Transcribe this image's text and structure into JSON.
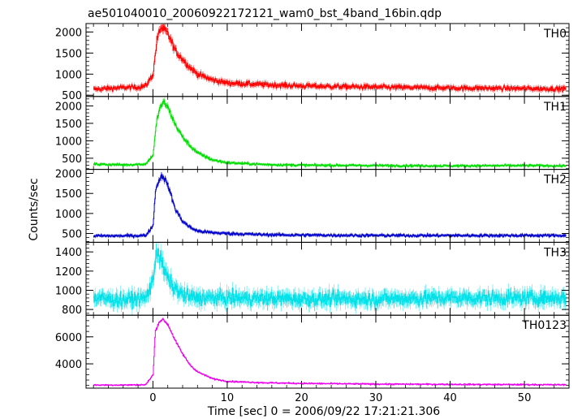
{
  "title": "ae501040010_20060922172121_wam0_bst_4band_16bin.qdp",
  "ylabel": "Counts/sec",
  "xlabel": "Time [sec] 0 = 2006/09/22 17:21:21.306",
  "chart_data": {
    "type": "line",
    "title": "ae501040010_20060922172121_wam0_bst_4band_16bin.qdp",
    "xlabel": "Time [sec] 0 = 2006/09/22 17:21:21.306",
    "ylabel": "Counts/sec",
    "xlim": [
      -9,
      56
    ],
    "x_ticks": [
      0,
      10,
      20,
      30,
      40,
      50
    ],
    "grid": false,
    "panels": [
      {
        "name": "TH0",
        "color": "#ff0000",
        "ylim": [
          470,
          2200
        ],
        "y_ticks": [
          500,
          1000,
          1500,
          2000
        ],
        "series_x": [
          -8,
          -6,
          -4,
          -2,
          -1,
          0,
          0.5,
          1,
          1.5,
          2,
          3,
          4,
          5,
          6,
          8,
          10,
          15,
          20,
          30,
          40,
          50,
          55.5
        ],
        "series_y": [
          640,
          660,
          680,
          690,
          720,
          1000,
          1800,
          2100,
          2050,
          1950,
          1550,
          1350,
          1150,
          1000,
          860,
          790,
          750,
          720,
          690,
          670,
          660,
          650
        ],
        "noise": 55
      },
      {
        "name": "TH1",
        "color": "#00dd00",
        "ylim": [
          180,
          2270
        ],
        "y_ticks": [
          500,
          1000,
          1500,
          2000
        ],
        "series_x": [
          -8,
          -4,
          -1,
          0,
          0.5,
          1,
          1.5,
          2,
          3,
          4,
          5,
          6,
          8,
          10,
          15,
          20,
          30,
          40,
          50,
          55.5
        ],
        "series_y": [
          330,
          310,
          330,
          600,
          1600,
          2000,
          2100,
          1950,
          1450,
          1100,
          850,
          650,
          450,
          370,
          320,
          300,
          290,
          280,
          290,
          280
        ],
        "noise": 35
      },
      {
        "name": "TH2",
        "color": "#0000cc",
        "ylim": [
          280,
          2100
        ],
        "y_ticks": [
          500,
          1000,
          1500,
          2000
        ],
        "series_x": [
          -8,
          -4,
          -1,
          0,
          0.3,
          0.8,
          1.3,
          2,
          3,
          4,
          5,
          6,
          8,
          10,
          15,
          20,
          30,
          40,
          50,
          55.5
        ],
        "series_y": [
          440,
          440,
          450,
          700,
          1550,
          1850,
          1950,
          1700,
          1100,
          800,
          650,
          560,
          520,
          500,
          470,
          460,
          450,
          450,
          450,
          450
        ],
        "noise": 35
      },
      {
        "name": "TH3",
        "color": "#00e0e8",
        "ylim": [
          740,
          1500
        ],
        "y_ticks": [
          800,
          1000,
          1200,
          1400
        ],
        "series_x": [
          -8,
          -4,
          -1,
          0,
          0.4,
          0.9,
          1.5,
          2.5,
          4,
          6,
          10,
          20,
          30,
          40,
          50,
          55.5
        ],
        "series_y": [
          920,
          900,
          920,
          1100,
          1420,
          1350,
          1200,
          1050,
          950,
          920,
          920,
          910,
          910,
          920,
          920,
          920
        ],
        "noise": 70
      },
      {
        "name": "TH0123",
        "color": "#ee00ee",
        "ylim": [
          2200,
          7600
        ],
        "y_ticks": [
          4000,
          6000
        ],
        "series_x": [
          -8,
          -4,
          -1,
          0,
          0.3,
          0.8,
          1.3,
          2,
          3,
          4,
          5,
          6,
          8,
          10,
          15,
          20,
          30,
          40,
          50,
          55.5
        ],
        "series_y": [
          2430,
          2430,
          2450,
          3200,
          6400,
          7100,
          7300,
          6900,
          5700,
          4700,
          3900,
          3400,
          2900,
          2700,
          2600,
          2550,
          2500,
          2480,
          2460,
          2450
        ],
        "noise": 50
      }
    ]
  }
}
